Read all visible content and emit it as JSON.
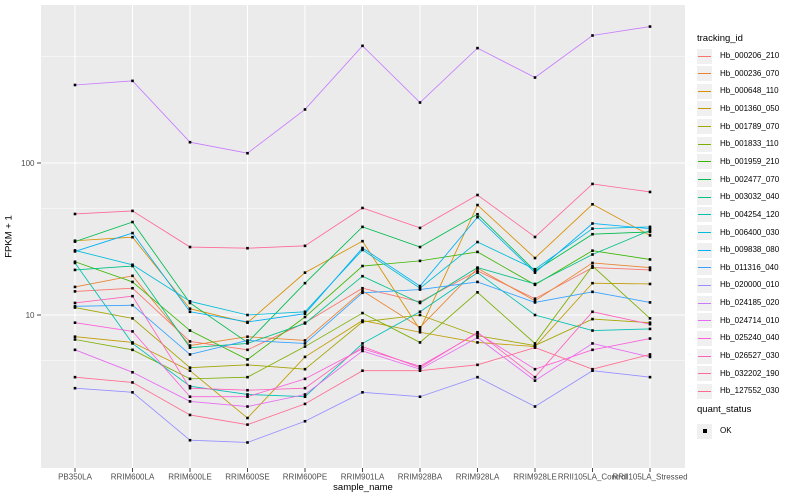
{
  "figure": {
    "background": "#FFFFFF",
    "panel_bg": "#EBEBEB",
    "grid_color": "#FFFFFF",
    "tick_mark_color": "#333333",
    "tick_label_color": "#4D4D4D",
    "point_color": "#000000",
    "legend_key_bg": "#F0F0F0"
  },
  "chart_data": {
    "type": "line",
    "title": "",
    "xlabel": "sample_name",
    "ylabel": "FPKM + 1",
    "y_scale": "log10",
    "ylim": [
      1.05,
      1050
    ],
    "y_major_ticks": [
      100,
      10
    ],
    "y_minor_ticks": [
      500,
      50,
      5
    ],
    "grid": true,
    "legend": {
      "title": "tracking_id",
      "position": "right"
    },
    "quant_status": {
      "title": "quant_status",
      "items": [
        {
          "label": "OK",
          "marker": "black-square"
        }
      ]
    },
    "categories": [
      "PB350LA",
      "RRIM600LA",
      "RRIM600LE",
      "RRIM600SE",
      "RRIM600PE",
      "RRIM901LA",
      "RRIM928BA",
      "RRIM928LA",
      "RRIM928LE",
      "RRII105LA_Control",
      "RRII105LA_Stressed"
    ],
    "series": [
      {
        "name": "Hb_000206_210",
        "color": "#F8766D",
        "values": [
          14.3,
          15.0,
          6.7,
          5.9,
          8.9,
          15.0,
          12.2,
          19.5,
          12.8,
          20.5,
          19.8
        ]
      },
      {
        "name": "Hb_000236_070",
        "color": "#EA8331",
        "values": [
          15.3,
          18.1,
          6.3,
          7.2,
          6.8,
          14.4,
          8.3,
          20.3,
          12.4,
          22.0,
          20.5
        ]
      },
      {
        "name": "Hb_000648_110",
        "color": "#D89000",
        "values": [
          30.8,
          32.5,
          11.0,
          8.9,
          19.0,
          30.6,
          8.0,
          52.9,
          23.7,
          53.5,
          33.4
        ]
      },
      {
        "name": "Hb_001360_050",
        "color": "#C09B00",
        "values": [
          7.2,
          6.6,
          4.3,
          2.1,
          5.3,
          9.2,
          7.7,
          6.6,
          6.2,
          16.2,
          16.0
        ]
      },
      {
        "name": "Hb_001789_070",
        "color": "#A3A500",
        "values": [
          11.2,
          9.5,
          4.5,
          4.7,
          4.4,
          9.0,
          10.0,
          7.3,
          6.3,
          9.4,
          8.9
        ]
      },
      {
        "name": "Hb_001833_110",
        "color": "#7CAE00",
        "values": [
          6.9,
          5.9,
          3.8,
          3.9,
          6.2,
          10.3,
          6.6,
          14.1,
          6.5,
          21.0,
          9.5
        ]
      },
      {
        "name": "Hb_001959_210",
        "color": "#39B600",
        "values": [
          22.4,
          16.5,
          7.9,
          5.1,
          9.7,
          21.0,
          22.7,
          26.0,
          15.8,
          26.5,
          23.2
        ]
      },
      {
        "name": "Hb_002477_070",
        "color": "#00BB4E",
        "values": [
          30.4,
          40.9,
          12.0,
          6.6,
          16.2,
          38.0,
          28.0,
          46.0,
          19.5,
          34.0,
          35.2
        ]
      },
      {
        "name": "Hb_003032_040",
        "color": "#00C087",
        "values": [
          19.8,
          21.0,
          6.1,
          6.5,
          8.8,
          18.0,
          12.0,
          20.5,
          16.0,
          25.0,
          36.0
        ]
      },
      {
        "name": "Hb_004254_120",
        "color": "#00C0B2",
        "values": [
          22.0,
          6.5,
          3.4,
          3.0,
          2.9,
          6.5,
          10.5,
          19.0,
          10.0,
          7.9,
          8.1
        ]
      },
      {
        "name": "Hb_006400_030",
        "color": "#00BCD8",
        "values": [
          26.6,
          21.4,
          12.3,
          10.0,
          10.5,
          26.8,
          15.0,
          30.2,
          20.0,
          37.0,
          38.0
        ]
      },
      {
        "name": "Hb_009838_080",
        "color": "#00B0F6",
        "values": [
          26.2,
          34.6,
          10.5,
          9.0,
          10.2,
          27.6,
          15.5,
          44.0,
          19.0,
          40.0,
          37.0
        ]
      },
      {
        "name": "Hb_011316_040",
        "color": "#35A2FF",
        "values": [
          11.4,
          11.6,
          5.5,
          6.8,
          6.5,
          14.0,
          14.7,
          16.5,
          12.1,
          14.2,
          12.1
        ]
      },
      {
        "name": "Hb_020000_010",
        "color": "#9590FF",
        "values": [
          3.3,
          3.1,
          1.5,
          1.45,
          2.0,
          3.1,
          2.9,
          3.9,
          2.5,
          4.3,
          3.9
        ]
      },
      {
        "name": "Hb_024185_020",
        "color": "#C77CFF",
        "values": [
          326,
          347,
          137,
          116,
          225,
          590,
          250,
          570,
          365,
          690,
          790
        ]
      },
      {
        "name": "Hb_024714_010",
        "color": "#E76BF3",
        "values": [
          5.9,
          4.2,
          2.7,
          2.5,
          3.0,
          5.8,
          4.4,
          7.1,
          3.7,
          6.5,
          5.3
        ]
      },
      {
        "name": "Hb_025240_040",
        "color": "#FA62DB",
        "values": [
          8.9,
          7.8,
          2.9,
          2.9,
          3.8,
          6.0,
          4.6,
          7.6,
          4.4,
          5.9,
          7.0
        ]
      },
      {
        "name": "Hb_026527_030",
        "color": "#FF62BC",
        "values": [
          12.0,
          13.3,
          3.3,
          3.2,
          3.3,
          6.2,
          4.5,
          7.7,
          3.9,
          10.5,
          8.7
        ]
      },
      {
        "name": "Hb_032202_190",
        "color": "#FF6A98",
        "values": [
          46.2,
          48.4,
          28.0,
          27.5,
          28.5,
          50.6,
          37.4,
          61.6,
          32.6,
          72.8,
          64.5
        ]
      },
      {
        "name": "Hb_127552_030",
        "color": "#FF6C91",
        "values": [
          3.9,
          3.6,
          2.2,
          1.9,
          2.6,
          4.3,
          4.3,
          4.7,
          6.1,
          4.4,
          5.5
        ]
      }
    ]
  }
}
